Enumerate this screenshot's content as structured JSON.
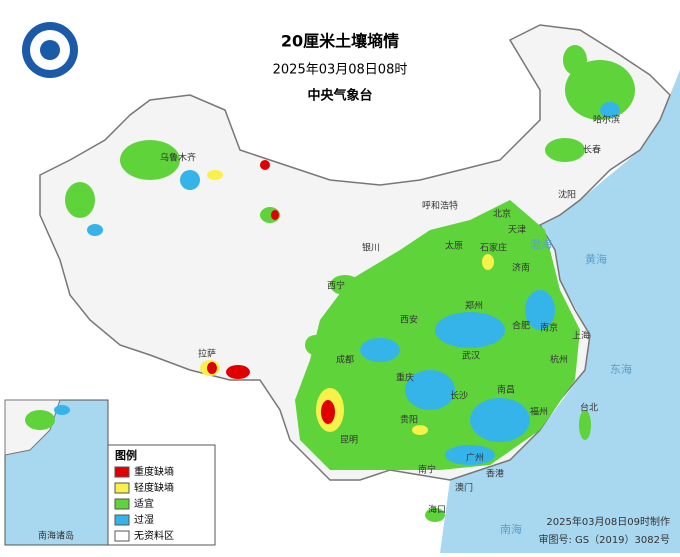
{
  "header": {
    "title": "20厘米土壤墒情",
    "time": "2025年03月08日08时",
    "issuer": "中央气象台"
  },
  "legend": {
    "title": "图例",
    "items": [
      {
        "label": "重度缺墒",
        "color": "#e00000"
      },
      {
        "label": "轻度缺墒",
        "color": "#f7f14a"
      },
      {
        "label": "适宜",
        "color": "#5fd33a"
      },
      {
        "label": "过湿",
        "color": "#35b4ea"
      },
      {
        "label": "无资料区",
        "color": "#ffffff"
      }
    ]
  },
  "cities": [
    "乌鲁木齐",
    "拉萨",
    "西宁",
    "银川",
    "呼和浩特",
    "北京",
    "天津",
    "石家庄",
    "太原",
    "济南",
    "西安",
    "郑州",
    "合肥",
    "南京",
    "上海",
    "杭州",
    "武汉",
    "成都",
    "重庆",
    "长沙",
    "南昌",
    "福州",
    "贵阳",
    "昆明",
    "南宁",
    "广州",
    "香港",
    "澳门",
    "海口",
    "台北",
    "哈尔滨",
    "长春",
    "沈阳"
  ],
  "seas": [
    "渤海",
    "黄海",
    "东海",
    "南海"
  ],
  "inset": {
    "label": "南海诸岛"
  },
  "footer": {
    "made": "2025年03月08日09时制作",
    "review": "审图号: GS（2019）3082号"
  }
}
